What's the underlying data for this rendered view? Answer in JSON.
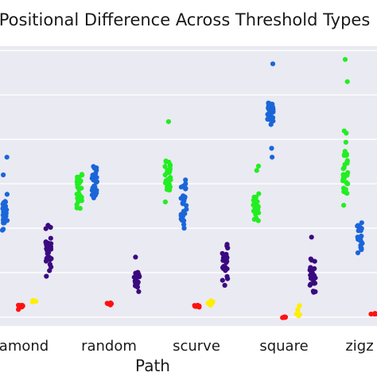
{
  "chart_data": {
    "type": "scatter",
    "subtype": "strip",
    "title": "Positional Difference Across Threshold Types",
    "xlabel": "Path",
    "ylabel": "",
    "categories": [
      "diamond",
      "random",
      "scurve",
      "square",
      "zigzag"
    ],
    "category_tick_labels": [
      "amond",
      "random",
      "scurve",
      "square",
      "zigz"
    ],
    "grid": true,
    "series_colors": [
      "#1a66d9",
      "#22ee22",
      "#3a0a80",
      "#ff1111",
      "#ffee00"
    ],
    "groups": [
      {
        "category": "diamond",
        "color": "#1a66d9",
        "y_min": 0.19,
        "y_max": 0.31,
        "center": 0.25,
        "n": 28,
        "outliers": [
          0.38,
          0.34
        ]
      },
      {
        "category": "diamond",
        "color": "#3a0a80",
        "y_min": 0.1,
        "y_max": 0.24,
        "center": 0.17,
        "n": 32,
        "outliers": []
      },
      {
        "category": "diamond",
        "color": "#ff1111",
        "y_min": 0.035,
        "y_max": 0.05,
        "center": 0.043,
        "n": 10,
        "outliers": []
      },
      {
        "category": "diamond",
        "color": "#ffee00",
        "y_min": 0.048,
        "y_max": 0.06,
        "center": 0.054,
        "n": 6,
        "outliers": []
      },
      {
        "category": "random",
        "color": "#22ee22",
        "y_min": 0.23,
        "y_max": 0.37,
        "center": 0.29,
        "n": 28,
        "outliers": []
      },
      {
        "category": "random",
        "color": "#1a66d9",
        "y_min": 0.27,
        "y_max": 0.38,
        "center": 0.32,
        "n": 28,
        "outliers": []
      },
      {
        "category": "random",
        "color": "#3a0a80",
        "y_min": 0.07,
        "y_max": 0.13,
        "center": 0.1,
        "n": 24,
        "outliers": [
          0.155
        ]
      },
      {
        "category": "random",
        "color": "#ff1111",
        "y_min": 0.045,
        "y_max": 0.055,
        "center": 0.05,
        "n": 8,
        "outliers": []
      },
      {
        "category": "scurve",
        "color": "#22ee22",
        "y_min": 0.27,
        "y_max": 0.4,
        "center": 0.34,
        "n": 30,
        "outliers": [
          0.46
        ]
      },
      {
        "category": "scurve",
        "color": "#1a66d9",
        "y_min": 0.21,
        "y_max": 0.35,
        "center": 0.28,
        "n": 30,
        "outliers": []
      },
      {
        "category": "scurve",
        "color": "#3a0a80",
        "y_min": 0.08,
        "y_max": 0.21,
        "center": 0.14,
        "n": 30,
        "outliers": []
      },
      {
        "category": "scurve",
        "color": "#ff1111",
        "y_min": 0.04,
        "y_max": 0.05,
        "center": 0.045,
        "n": 8,
        "outliers": []
      },
      {
        "category": "scurve",
        "color": "#ffee00",
        "y_min": 0.044,
        "y_max": 0.058,
        "center": 0.05,
        "n": 6,
        "outliers": []
      },
      {
        "category": "square",
        "color": "#22ee22",
        "y_min": 0.22,
        "y_max": 0.32,
        "center": 0.27,
        "n": 26,
        "outliers": [
          0.35,
          0.36
        ]
      },
      {
        "category": "square",
        "color": "#1a66d9",
        "y_min": 0.43,
        "y_max": 0.53,
        "center": 0.48,
        "n": 30,
        "outliers": [
          0.38,
          0.4,
          0.59
        ]
      },
      {
        "category": "square",
        "color": "#3a0a80",
        "y_min": 0.06,
        "y_max": 0.16,
        "center": 0.11,
        "n": 26,
        "outliers": [
          0.2
        ]
      },
      {
        "category": "square",
        "color": "#ff1111",
        "y_min": 0.018,
        "y_max": 0.022,
        "center": 0.02,
        "n": 5,
        "outliers": []
      },
      {
        "category": "square",
        "color": "#ffee00",
        "y_min": 0.02,
        "y_max": 0.055,
        "center": 0.035,
        "n": 6,
        "outliers": []
      },
      {
        "category": "zigzag",
        "color": "#22ee22",
        "y_min": 0.25,
        "y_max": 0.45,
        "center": 0.36,
        "n": 34,
        "outliers": [
          0.55,
          0.6
        ]
      },
      {
        "category": "zigzag",
        "color": "#1a66d9",
        "y_min": 0.13,
        "y_max": 0.26,
        "center": 0.19,
        "n": 24,
        "outliers": []
      },
      {
        "category": "zigzag",
        "color": "#ff1111",
        "y_min": 0.025,
        "y_max": 0.03,
        "center": 0.028,
        "n": 5,
        "outliers": []
      }
    ],
    "ylim": [
      0,
      0.63
    ]
  }
}
